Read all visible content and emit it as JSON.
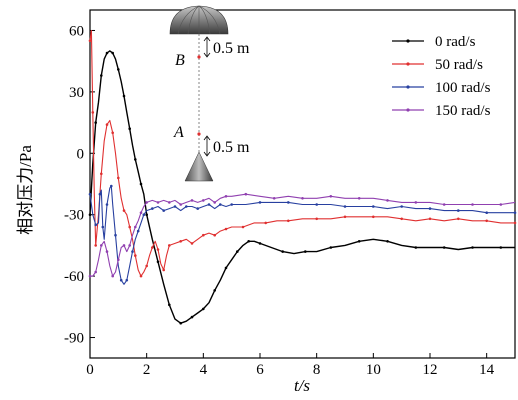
{
  "chart_data": {
    "type": "line",
    "xlabel": "t/s",
    "ylabel": "相对压力/Pa",
    "xlim": [
      0,
      15
    ],
    "ylim": [
      -100,
      70
    ],
    "xticks": [
      0,
      2,
      4,
      6,
      8,
      10,
      12,
      14
    ],
    "yticks": [
      60,
      30,
      0,
      -30,
      -60,
      -90
    ],
    "grid": false,
    "legend_position": "top-right",
    "annotations": {
      "point_b": "B",
      "point_a": "A",
      "distance_b": "0.5 m",
      "distance_a": "0.5 m"
    },
    "series": [
      {
        "name": "0 rad/s",
        "color": "#000000",
        "points": [
          [
            0,
            -30
          ],
          [
            0.1,
            -5
          ],
          [
            0.2,
            15
          ],
          [
            0.3,
            25
          ],
          [
            0.4,
            38
          ],
          [
            0.5,
            46
          ],
          [
            0.6,
            49
          ],
          [
            0.7,
            50
          ],
          [
            0.8,
            49
          ],
          [
            0.9,
            46
          ],
          [
            1.0,
            41
          ],
          [
            1.1,
            35
          ],
          [
            1.2,
            28
          ],
          [
            1.3,
            20
          ],
          [
            1.4,
            12
          ],
          [
            1.5,
            4
          ],
          [
            1.6,
            -3
          ],
          [
            1.7,
            -9
          ],
          [
            1.8,
            -15
          ],
          [
            1.9,
            -20
          ],
          [
            2.0,
            -30
          ],
          [
            2.2,
            -42
          ],
          [
            2.4,
            -53
          ],
          [
            2.6,
            -64
          ],
          [
            2.8,
            -74
          ],
          [
            3.0,
            -81
          ],
          [
            3.2,
            -83
          ],
          [
            3.4,
            -82
          ],
          [
            3.6,
            -80
          ],
          [
            3.8,
            -78
          ],
          [
            4.0,
            -76
          ],
          [
            4.2,
            -73
          ],
          [
            4.4,
            -67
          ],
          [
            4.6,
            -62
          ],
          [
            4.8,
            -56
          ],
          [
            5.0,
            -52
          ],
          [
            5.2,
            -48
          ],
          [
            5.4,
            -45
          ],
          [
            5.6,
            -43
          ],
          [
            5.8,
            -43
          ],
          [
            6.0,
            -44
          ],
          [
            6.4,
            -46
          ],
          [
            6.8,
            -48
          ],
          [
            7.2,
            -49
          ],
          [
            7.6,
            -48
          ],
          [
            8.0,
            -48
          ],
          [
            8.5,
            -46
          ],
          [
            9.0,
            -45
          ],
          [
            9.5,
            -43
          ],
          [
            10.0,
            -42
          ],
          [
            10.5,
            -43
          ],
          [
            11.0,
            -45
          ],
          [
            11.5,
            -46
          ],
          [
            12.0,
            -46
          ],
          [
            12.5,
            -46
          ],
          [
            13.0,
            -47
          ],
          [
            13.5,
            -46
          ],
          [
            14.0,
            -46
          ],
          [
            14.5,
            -46
          ],
          [
            15.0,
            -46
          ]
        ]
      },
      {
        "name": "50 rad/s",
        "color": "#e03030",
        "points": [
          [
            0,
            55
          ],
          [
            0.05,
            60
          ],
          [
            0.1,
            20
          ],
          [
            0.15,
            -20
          ],
          [
            0.2,
            -45
          ],
          [
            0.3,
            -30
          ],
          [
            0.4,
            -10
          ],
          [
            0.5,
            6
          ],
          [
            0.6,
            14
          ],
          [
            0.7,
            16
          ],
          [
            0.8,
            10
          ],
          [
            0.9,
            0
          ],
          [
            1.0,
            -12
          ],
          [
            1.1,
            -22
          ],
          [
            1.2,
            -28
          ],
          [
            1.3,
            -30
          ],
          [
            1.4,
            -36
          ],
          [
            1.5,
            -42
          ],
          [
            1.6,
            -50
          ],
          [
            1.7,
            -57
          ],
          [
            1.8,
            -60
          ],
          [
            1.9,
            -58
          ],
          [
            2.0,
            -55
          ],
          [
            2.1,
            -50
          ],
          [
            2.2,
            -46
          ],
          [
            2.3,
            -43
          ],
          [
            2.4,
            -47
          ],
          [
            2.5,
            -54
          ],
          [
            2.6,
            -57
          ],
          [
            2.7,
            -50
          ],
          [
            2.8,
            -45
          ],
          [
            3.0,
            -44
          ],
          [
            3.2,
            -43
          ],
          [
            3.4,
            -42
          ],
          [
            3.6,
            -44
          ],
          [
            3.8,
            -42
          ],
          [
            4.0,
            -40
          ],
          [
            4.2,
            -39
          ],
          [
            4.4,
            -40
          ],
          [
            4.6,
            -38
          ],
          [
            4.8,
            -37
          ],
          [
            5.0,
            -36
          ],
          [
            5.4,
            -36
          ],
          [
            5.8,
            -34
          ],
          [
            6.2,
            -34
          ],
          [
            6.6,
            -33
          ],
          [
            7.0,
            -33
          ],
          [
            7.5,
            -32
          ],
          [
            8.0,
            -32
          ],
          [
            8.5,
            -32
          ],
          [
            9.0,
            -31
          ],
          [
            9.5,
            -31
          ],
          [
            10.0,
            -31
          ],
          [
            10.5,
            -31
          ],
          [
            11.0,
            -32
          ],
          [
            11.5,
            -33
          ],
          [
            12.0,
            -32
          ],
          [
            12.5,
            -33
          ],
          [
            13.0,
            -32
          ],
          [
            13.5,
            -33
          ],
          [
            14.0,
            -33
          ],
          [
            14.5,
            -34
          ],
          [
            15.0,
            -34
          ]
        ]
      },
      {
        "name": "100 rad/s",
        "color": "#2840a0",
        "points": [
          [
            0,
            -20
          ],
          [
            0.1,
            -30
          ],
          [
            0.2,
            -35
          ],
          [
            0.3,
            -34
          ],
          [
            0.35,
            -20
          ],
          [
            0.4,
            -18
          ],
          [
            0.45,
            -36
          ],
          [
            0.5,
            -42
          ],
          [
            0.6,
            -25
          ],
          [
            0.7,
            -17
          ],
          [
            0.75,
            -16
          ],
          [
            0.8,
            -25
          ],
          [
            0.9,
            -40
          ],
          [
            1.0,
            -55
          ],
          [
            1.1,
            -62
          ],
          [
            1.2,
            -64
          ],
          [
            1.3,
            -62
          ],
          [
            1.4,
            -55
          ],
          [
            1.5,
            -48
          ],
          [
            1.6,
            -42
          ],
          [
            1.7,
            -38
          ],
          [
            1.8,
            -34
          ],
          [
            1.9,
            -30
          ],
          [
            2.0,
            -28
          ],
          [
            2.2,
            -27
          ],
          [
            2.4,
            -26
          ],
          [
            2.6,
            -28
          ],
          [
            2.8,
            -27
          ],
          [
            3.0,
            -26
          ],
          [
            3.2,
            -28
          ],
          [
            3.4,
            -26
          ],
          [
            3.6,
            -26
          ],
          [
            3.8,
            -27
          ],
          [
            4.0,
            -26
          ],
          [
            4.2,
            -25
          ],
          [
            4.4,
            -27
          ],
          [
            4.6,
            -25
          ],
          [
            4.8,
            -26
          ],
          [
            5.0,
            -25
          ],
          [
            5.5,
            -25
          ],
          [
            6.0,
            -24
          ],
          [
            6.5,
            -24
          ],
          [
            7.0,
            -24
          ],
          [
            7.5,
            -25
          ],
          [
            8.0,
            -25
          ],
          [
            8.5,
            -25
          ],
          [
            9.0,
            -26
          ],
          [
            9.5,
            -26
          ],
          [
            10.0,
            -26
          ],
          [
            10.5,
            -27
          ],
          [
            11.0,
            -26
          ],
          [
            11.5,
            -27
          ],
          [
            12.0,
            -27
          ],
          [
            12.5,
            -28
          ],
          [
            13.0,
            -28
          ],
          [
            13.5,
            -28
          ],
          [
            14.0,
            -29
          ],
          [
            14.5,
            -29
          ],
          [
            15.0,
            -29
          ]
        ]
      },
      {
        "name": "150 rad/s",
        "color": "#9040b0",
        "points": [
          [
            0,
            -60
          ],
          [
            0.1,
            -60
          ],
          [
            0.2,
            -58
          ],
          [
            0.3,
            -52
          ],
          [
            0.4,
            -45
          ],
          [
            0.5,
            -43
          ],
          [
            0.6,
            -48
          ],
          [
            0.7,
            -55
          ],
          [
            0.8,
            -60
          ],
          [
            0.9,
            -58
          ],
          [
            1.0,
            -52
          ],
          [
            1.1,
            -46
          ],
          [
            1.2,
            -45
          ],
          [
            1.3,
            -48
          ],
          [
            1.4,
            -45
          ],
          [
            1.5,
            -40
          ],
          [
            1.6,
            -36
          ],
          [
            1.7,
            -33
          ],
          [
            1.8,
            -29
          ],
          [
            1.9,
            -26
          ],
          [
            2.0,
            -24
          ],
          [
            2.2,
            -23
          ],
          [
            2.4,
            -24
          ],
          [
            2.6,
            -23
          ],
          [
            2.8,
            -24
          ],
          [
            3.0,
            -23
          ],
          [
            3.2,
            -25
          ],
          [
            3.4,
            -24
          ],
          [
            3.6,
            -23
          ],
          [
            3.8,
            -24
          ],
          [
            4.0,
            -23
          ],
          [
            4.2,
            -22
          ],
          [
            4.4,
            -24
          ],
          [
            4.6,
            -22
          ],
          [
            4.8,
            -21
          ],
          [
            5.0,
            -21
          ],
          [
            5.5,
            -20
          ],
          [
            6.0,
            -21
          ],
          [
            6.5,
            -22
          ],
          [
            7.0,
            -21
          ],
          [
            7.5,
            -22
          ],
          [
            8.0,
            -22
          ],
          [
            8.5,
            -21
          ],
          [
            9.0,
            -22
          ],
          [
            9.5,
            -22
          ],
          [
            10.0,
            -22
          ],
          [
            10.5,
            -23
          ],
          [
            11.0,
            -24
          ],
          [
            11.5,
            -24
          ],
          [
            12.0,
            -24
          ],
          [
            12.5,
            -25
          ],
          [
            13.0,
            -25
          ],
          [
            13.5,
            -25
          ],
          [
            14.0,
            -25
          ],
          [
            14.5,
            -25
          ],
          [
            15.0,
            -24
          ]
        ]
      }
    ]
  }
}
